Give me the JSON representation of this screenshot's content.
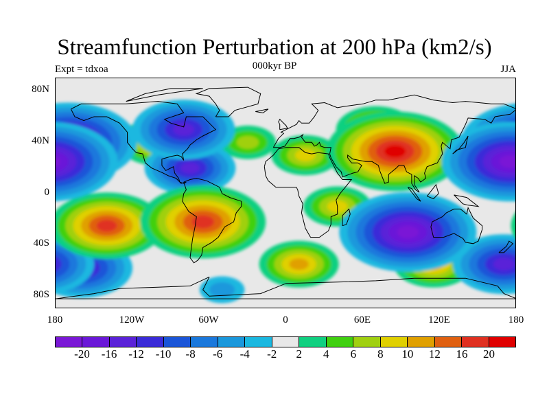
{
  "title": "Streamfunction Perturbation at 200 hPa (km2/s)",
  "subtitle": "000kyr BP",
  "left_label": "Expt = tdxoa",
  "right_label": "JJA",
  "y_ticks": [
    "80N",
    "40N",
    "0",
    "40S",
    "80S"
  ],
  "x_ticks": [
    "180",
    "120W",
    "60W",
    "0",
    "60E",
    "120E",
    "180"
  ],
  "colorbar": {
    "colors": [
      "#7a18d6",
      "#6a18d8",
      "#5a22d8",
      "#3a2bd8",
      "#1a55d8",
      "#1a78dc",
      "#1a98dc",
      "#1ab8e0",
      "#e8e8e8",
      "#10d080",
      "#40d010",
      "#a0d010",
      "#e0d000",
      "#e0a000",
      "#e06010",
      "#e03020",
      "#e00000"
    ],
    "labels": [
      "-20",
      "-16",
      "-12",
      "-10",
      "-8",
      "-6",
      "-4",
      "-2",
      "2",
      "4",
      "6",
      "8",
      "10",
      "12",
      "16",
      "20"
    ]
  },
  "chart_data": {
    "type": "heatmap",
    "title": "Streamfunction Perturbation at 200 hPa (km2/s)",
    "subtitle": "000kyr BP",
    "experiment": "Expt = tdxoa",
    "season": "JJA",
    "x_range": [
      -180,
      180
    ],
    "y_range": [
      -90,
      90
    ],
    "x_ticks": [
      "180",
      "120W",
      "60W",
      "0",
      "60E",
      "120E",
      "180"
    ],
    "y_ticks": [
      "80N",
      "40N",
      "0",
      "40S",
      "80S"
    ],
    "contour_levels": [
      -20,
      -16,
      -12,
      -10,
      -8,
      -6,
      -4,
      -2,
      2,
      4,
      6,
      8,
      10,
      12,
      16,
      20
    ],
    "background": "#e8e8e8",
    "field_features": [
      {
        "lon": 85,
        "lat": 33,
        "value": 20
      },
      {
        "lon": 70,
        "lat": 50,
        "value": 10
      },
      {
        "lon": 15,
        "lat": 30,
        "value": 8
      },
      {
        "lon": -140,
        "lat": -25,
        "value": 16
      },
      {
        "lon": -65,
        "lat": -22,
        "value": 18
      },
      {
        "lon": 10,
        "lat": -55,
        "value": 10
      },
      {
        "lon": 115,
        "lat": -55,
        "value": 10
      },
      {
        "lon": -170,
        "lat": 40,
        "value": -20
      },
      {
        "lon": 175,
        "lat": 25,
        "value": -20
      },
      {
        "lon": -80,
        "lat": 50,
        "value": -14
      },
      {
        "lon": -75,
        "lat": 20,
        "value": -12
      },
      {
        "lon": 95,
        "lat": -30,
        "value": -20
      },
      {
        "lon": -160,
        "lat": -58,
        "value": -14
      },
      {
        "lon": 170,
        "lat": -55,
        "value": -14
      },
      {
        "lon": -50,
        "lat": -75,
        "value": -4
      },
      {
        "lon": -100,
        "lat": 40,
        "value": 10
      },
      {
        "lon": -30,
        "lat": 40,
        "value": 6
      },
      {
        "lon": 40,
        "lat": -10,
        "value": 8
      }
    ]
  }
}
